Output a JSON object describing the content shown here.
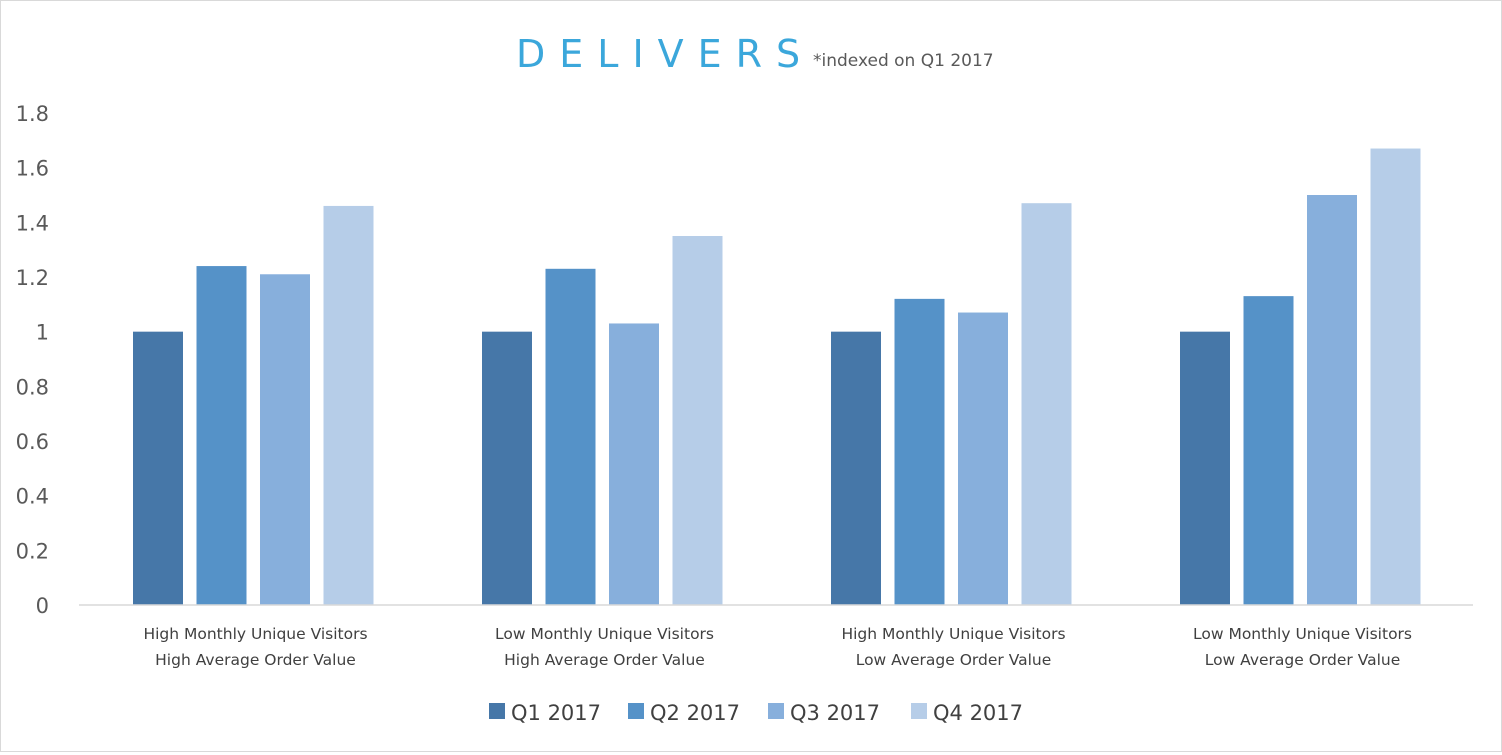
{
  "chart_data": {
    "type": "bar",
    "title": "DELIVERS",
    "subtitle": "*indexed on Q1 2017",
    "categories": [
      [
        "High Monthly Unique Visitors",
        "High Average Order Value"
      ],
      [
        "Low Monthly Unique Visitors",
        "High Average Order Value"
      ],
      [
        "High Monthly Unique Visitors",
        "Low Average Order Value"
      ],
      [
        "Low Monthly Unique Visitors",
        "Low Average Order Value"
      ]
    ],
    "series": [
      {
        "name": "Q1 2017",
        "color": "#4677A8",
        "values": [
          1.0,
          1.0,
          1.0,
          1.0
        ]
      },
      {
        "name": "Q2 2017",
        "color": "#5592C8",
        "values": [
          1.24,
          1.23,
          1.12,
          1.13
        ]
      },
      {
        "name": "Q3 2017",
        "color": "#87AFDC",
        "values": [
          1.21,
          1.03,
          1.07,
          1.5
        ]
      },
      {
        "name": "Q4 2017",
        "color": "#B6CDE8",
        "values": [
          1.46,
          1.35,
          1.47,
          1.67
        ]
      }
    ],
    "ylim": [
      0,
      1.8
    ],
    "yticks": [
      "0",
      "0.2",
      "0.4",
      "0.6",
      "0.8",
      "1",
      "1.2",
      "1.4",
      "1.6",
      "1.8"
    ],
    "title_color": "#3BA7DB",
    "grid": false,
    "legend_position": "bottom"
  }
}
